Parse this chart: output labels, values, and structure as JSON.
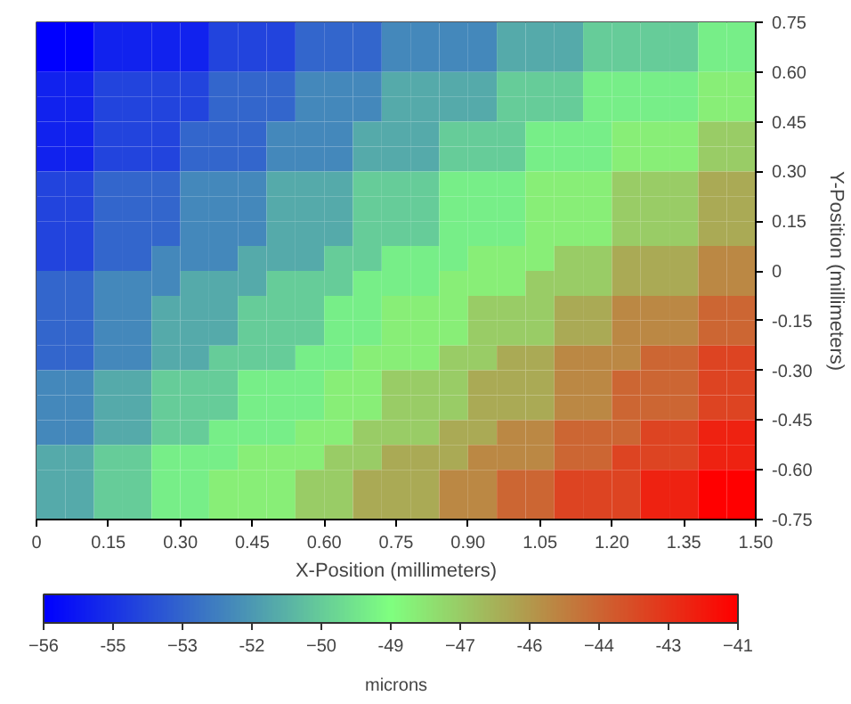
{
  "chart_data": {
    "type": "heatmap",
    "xlabel": "X-Position (millimeters)",
    "ylabel": "Y-Position (millimeters)",
    "clabel": "microns",
    "xlim": [
      0,
      1.5
    ],
    "ylim": [
      -0.75,
      0.75
    ],
    "xticks": [
      0,
      {
        "value": 0.15,
        "label": "0.15"
      },
      {
        "value": 0.3,
        "label": "0.30"
      },
      {
        "value": 0.45,
        "label": "0.45"
      },
      {
        "value": 0.6,
        "label": "0.60"
      },
      {
        "value": 0.75,
        "label": "0.75"
      },
      {
        "value": 0.9,
        "label": "0.90"
      },
      {
        "value": 1.05,
        "label": "1.05"
      },
      {
        "value": 1.2,
        "label": "1.20"
      },
      {
        "value": 1.35,
        "label": "1.35"
      },
      {
        "value": 1.5,
        "label": "1.50"
      }
    ],
    "yticks": [
      {
        "value": -0.75,
        "label": "-0.75"
      },
      {
        "value": -0.6,
        "label": "-0.60"
      },
      {
        "value": -0.45,
        "label": "-0.45"
      },
      {
        "value": -0.3,
        "label": "-0.30"
      },
      {
        "value": -0.15,
        "label": "-0.15"
      },
      0,
      {
        "value": 0.15,
        "label": "0.15"
      },
      {
        "value": 0.3,
        "label": "0.30"
      },
      {
        "value": 0.45,
        "label": "0.45"
      },
      {
        "value": 0.6,
        "label": "0.60"
      },
      {
        "value": 0.75,
        "label": "0.75"
      }
    ],
    "clim": [
      -56,
      -41
    ],
    "cticks": [
      -56,
      {
        "value": -54.5,
        "label": "-55"
      },
      -53,
      {
        "value": -51.5,
        "label": "-52"
      },
      -50,
      {
        "value": -48.5,
        "label": "-49"
      },
      -47,
      {
        "value": -45.5,
        "label": "-46"
      },
      -44,
      {
        "value": -42.5,
        "label": "-43"
      },
      -41
    ],
    "colors": [
      "#0000ff",
      "#80ff80",
      "#ff0000"
    ],
    "grid": false,
    "cells": [
      [
        -56,
        -56,
        -55,
        -55,
        -55,
        -55,
        -54,
        -54,
        -54,
        -53,
        -53,
        -53,
        -52,
        -52,
        -52,
        -52,
        -51,
        -51,
        -51,
        -50,
        -50,
        -50,
        -50,
        -49,
        -49
      ],
      [
        -56,
        -56,
        -55,
        -55,
        -55,
        -55,
        -54,
        -54,
        -54,
        -53,
        -53,
        -53,
        -52,
        -52,
        -52,
        -52,
        -51,
        -51,
        -51,
        -50,
        -50,
        -50,
        -50,
        -49,
        -49
      ],
      [
        -55,
        -55,
        -54,
        -54,
        -54,
        -54,
        -53,
        -53,
        -53,
        -52,
        -52,
        -52,
        -51,
        -51,
        -51,
        -51,
        -50,
        -50,
        -50,
        -49,
        -49,
        -49,
        -49,
        -48,
        -48
      ],
      [
        -55,
        -55,
        -54,
        -54,
        -54,
        -54,
        -53,
        -53,
        -53,
        -52,
        -52,
        -52,
        -51,
        -51,
        -51,
        -51,
        -50,
        -50,
        -50,
        -49,
        -49,
        -49,
        -49,
        -48,
        -48
      ],
      [
        -55,
        -55,
        -54,
        -54,
        -54,
        -53,
        -53,
        -53,
        -52,
        -52,
        -52,
        -51,
        -51,
        -51,
        -50,
        -50,
        -50,
        -49,
        -49,
        -49,
        -48,
        -48,
        -48,
        -47,
        -47
      ],
      [
        -55,
        -55,
        -54,
        -54,
        -54,
        -53,
        -53,
        -53,
        -52,
        -52,
        -52,
        -51,
        -51,
        -51,
        -50,
        -50,
        -50,
        -49,
        -49,
        -49,
        -48,
        -48,
        -48,
        -47,
        -47
      ],
      [
        -54,
        -54,
        -53,
        -53,
        -53,
        -52,
        -52,
        -52,
        -51,
        -51,
        -51,
        -50,
        -50,
        -50,
        -49,
        -49,
        -49,
        -48,
        -48,
        -48,
        -47,
        -47,
        -47,
        -46,
        -46
      ],
      [
        -54,
        -54,
        -53,
        -53,
        -53,
        -52,
        -52,
        -52,
        -51,
        -51,
        -51,
        -50,
        -50,
        -50,
        -49,
        -49,
        -49,
        -48,
        -48,
        -48,
        -47,
        -47,
        -47,
        -46,
        -46
      ],
      [
        -54,
        -54,
        -53,
        -53,
        -53,
        -52,
        -52,
        -52,
        -51,
        -51,
        -51,
        -50,
        -50,
        -50,
        -49,
        -49,
        -49,
        -48,
        -48,
        -48,
        -47,
        -47,
        -47,
        -46,
        -46
      ],
      [
        -54,
        -54,
        -53,
        -53,
        -52,
        -52,
        -52,
        -51,
        -51,
        -51,
        -50,
        -50,
        -49,
        -49,
        -49,
        -48,
        -48,
        -48,
        -47,
        -47,
        -46,
        -46,
        -46,
        -45,
        -45
      ],
      [
        -53,
        -53,
        -52,
        -52,
        -52,
        -51,
        -51,
        -51,
        -50,
        -50,
        -50,
        -49,
        -49,
        -49,
        -48,
        -48,
        -48,
        -47,
        -47,
        -47,
        -46,
        -46,
        -46,
        -45,
        -45
      ],
      [
        -53,
        -53,
        -52,
        -52,
        -51,
        -51,
        -51,
        -50,
        -50,
        -50,
        -49,
        -49,
        -48,
        -48,
        -48,
        -47,
        -47,
        -47,
        -46,
        -46,
        -45,
        -45,
        -45,
        -44,
        -44
      ],
      [
        -53,
        -53,
        -52,
        -52,
        -51,
        -51,
        -51,
        -50,
        -50,
        -50,
        -49,
        -49,
        -48,
        -48,
        -48,
        -47,
        -47,
        -47,
        -46,
        -46,
        -45,
        -45,
        -45,
        -44,
        -44
      ],
      [
        -53,
        -53,
        -52,
        -52,
        -51,
        -51,
        -50,
        -50,
        -50,
        -49,
        -49,
        -48,
        -48,
        -48,
        -47,
        -47,
        -46,
        -46,
        -45,
        -45,
        -45,
        -44,
        -44,
        -43,
        -43
      ],
      [
        -52,
        -52,
        -51,
        -51,
        -50,
        -50,
        -50,
        -49,
        -49,
        -49,
        -48,
        -48,
        -47,
        -47,
        -47,
        -46,
        -46,
        -46,
        -45,
        -45,
        -44,
        -44,
        -44,
        -43,
        -43
      ],
      [
        -52,
        -52,
        -51,
        -51,
        -50,
        -50,
        -50,
        -49,
        -49,
        -49,
        -48,
        -48,
        -47,
        -47,
        -47,
        -46,
        -46,
        -46,
        -45,
        -45,
        -44,
        -44,
        -44,
        -43,
        -43
      ],
      [
        -52,
        -52,
        -51,
        -51,
        -50,
        -50,
        -49,
        -49,
        -49,
        -48,
        -48,
        -47,
        -47,
        -47,
        -46,
        -46,
        -45,
        -45,
        -44,
        -44,
        -44,
        -43,
        -43,
        -42,
        -42
      ],
      [
        -51,
        -51,
        -50,
        -50,
        -49,
        -49,
        -49,
        -48,
        -48,
        -48,
        -47,
        -47,
        -46,
        -46,
        -46,
        -45,
        -45,
        -45,
        -44,
        -44,
        -43,
        -43,
        -43,
        -42,
        -42
      ],
      [
        -51,
        -51,
        -50,
        -50,
        -49,
        -49,
        -48,
        -48,
        -48,
        -47,
        -47,
        -46,
        -46,
        -46,
        -45,
        -45,
        -44,
        -44,
        -43,
        -43,
        -43,
        -42,
        -42,
        -41,
        -41
      ],
      [
        -51,
        -51,
        -50,
        -50,
        -49,
        -49,
        -48,
        -48,
        -48,
        -47,
        -47,
        -46,
        -46,
        -46,
        -45,
        -45,
        -44,
        -44,
        -43,
        -43,
        -43,
        -42,
        -42,
        -41,
        -41
      ]
    ]
  }
}
